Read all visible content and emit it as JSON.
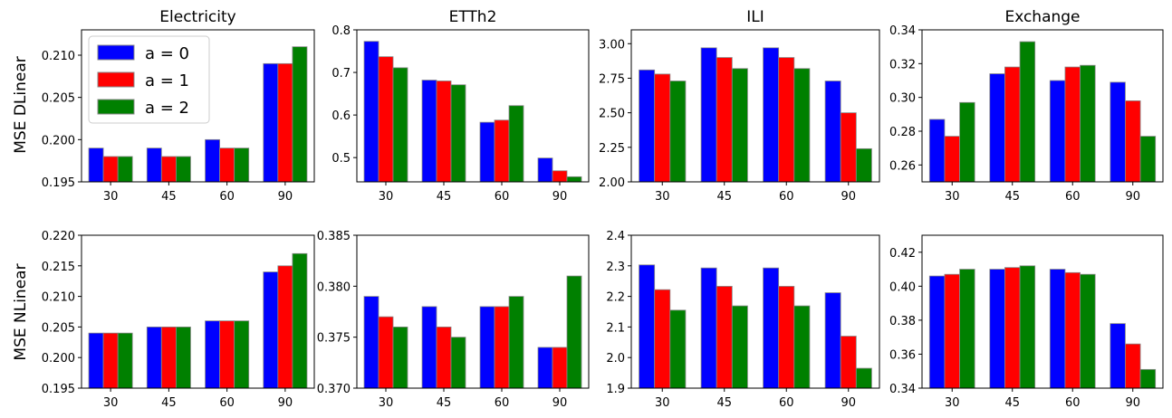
{
  "figure": {
    "row_labels": [
      "MSE DLinear",
      "MSE NLinear"
    ]
  },
  "legend": {
    "entries": [
      {
        "label": "a = 0",
        "color": "#0000ff"
      },
      {
        "label": "a = 1",
        "color": "#ff0000"
      },
      {
        "label": "a = 2",
        "color": "#008000"
      }
    ]
  },
  "chart_data": [
    {
      "type": "bar",
      "row": 0,
      "col": 0,
      "title": "Electricity",
      "categories": [
        "30",
        "45",
        "60",
        "90"
      ],
      "ylabel": "MSE DLinear",
      "ylim": [
        0.195,
        0.213
      ],
      "yticks": [
        0.195,
        0.2,
        0.205,
        0.21
      ],
      "ytick_labels": [
        "0.195",
        "0.200",
        "0.205",
        "0.210"
      ],
      "series": [
        {
          "name": "a = 0",
          "color": "#0000ff",
          "values": [
            0.199,
            0.199,
            0.2,
            0.209
          ]
        },
        {
          "name": "a = 1",
          "color": "#ff0000",
          "values": [
            0.198,
            0.198,
            0.199,
            0.209
          ]
        },
        {
          "name": "a = 2",
          "color": "#008000",
          "values": [
            0.198,
            0.198,
            0.199,
            0.211
          ]
        }
      ]
    },
    {
      "type": "bar",
      "row": 0,
      "col": 1,
      "title": "ETTh2",
      "categories": [
        "30",
        "45",
        "60",
        "90"
      ],
      "ylabel": "",
      "ylim": [
        0.443,
        0.8
      ],
      "yticks": [
        0.5,
        0.6,
        0.7,
        0.8
      ],
      "ytick_labels": [
        "0.5",
        "0.6",
        "0.7",
        "0.8"
      ],
      "series": [
        {
          "name": "a = 0",
          "color": "#0000ff",
          "values": [
            0.773,
            0.682,
            0.583,
            0.499
          ]
        },
        {
          "name": "a = 1",
          "color": "#ff0000",
          "values": [
            0.737,
            0.68,
            0.588,
            0.469
          ]
        },
        {
          "name": "a = 2",
          "color": "#008000",
          "values": [
            0.711,
            0.671,
            0.622,
            0.455
          ]
        }
      ]
    },
    {
      "type": "bar",
      "row": 0,
      "col": 2,
      "title": "ILI",
      "categories": [
        "30",
        "45",
        "60",
        "90"
      ],
      "ylabel": "",
      "ylim": [
        2.0,
        3.1
      ],
      "yticks": [
        2.0,
        2.25,
        2.5,
        2.75,
        3.0
      ],
      "ytick_labels": [
        "2.00",
        "2.25",
        "2.50",
        "2.75",
        "3.00"
      ],
      "series": [
        {
          "name": "a = 0",
          "color": "#0000ff",
          "values": [
            2.81,
            2.97,
            2.97,
            2.73
          ]
        },
        {
          "name": "a = 1",
          "color": "#ff0000",
          "values": [
            2.78,
            2.9,
            2.9,
            2.5
          ]
        },
        {
          "name": "a = 2",
          "color": "#008000",
          "values": [
            2.73,
            2.82,
            2.82,
            2.24
          ]
        }
      ]
    },
    {
      "type": "bar",
      "row": 0,
      "col": 3,
      "title": "Exchange",
      "categories": [
        "30",
        "45",
        "60",
        "90"
      ],
      "ylabel": "",
      "ylim": [
        0.25,
        0.34
      ],
      "yticks": [
        0.26,
        0.28,
        0.3,
        0.32,
        0.34
      ],
      "ytick_labels": [
        "0.26",
        "0.28",
        "0.30",
        "0.32",
        "0.34"
      ],
      "series": [
        {
          "name": "a = 0",
          "color": "#0000ff",
          "values": [
            0.287,
            0.314,
            0.31,
            0.309
          ]
        },
        {
          "name": "a = 1",
          "color": "#ff0000",
          "values": [
            0.277,
            0.318,
            0.318,
            0.298
          ]
        },
        {
          "name": "a = 2",
          "color": "#008000",
          "values": [
            0.297,
            0.333,
            0.319,
            0.277
          ]
        }
      ]
    },
    {
      "type": "bar",
      "row": 1,
      "col": 0,
      "title": "",
      "categories": [
        "30",
        "45",
        "60",
        "90"
      ],
      "ylabel": "MSE NLinear",
      "ylim": [
        0.195,
        0.22
      ],
      "yticks": [
        0.195,
        0.2,
        0.205,
        0.21,
        0.215,
        0.22
      ],
      "ytick_labels": [
        "0.195",
        "0.200",
        "0.205",
        "0.210",
        "0.215",
        "0.220"
      ],
      "series": [
        {
          "name": "a = 0",
          "color": "#0000ff",
          "values": [
            0.204,
            0.205,
            0.206,
            0.214
          ]
        },
        {
          "name": "a = 1",
          "color": "#ff0000",
          "values": [
            0.204,
            0.205,
            0.206,
            0.215
          ]
        },
        {
          "name": "a = 2",
          "color": "#008000",
          "values": [
            0.204,
            0.205,
            0.206,
            0.217
          ]
        }
      ]
    },
    {
      "type": "bar",
      "row": 1,
      "col": 1,
      "title": "",
      "categories": [
        "30",
        "45",
        "60",
        "90"
      ],
      "ylabel": "",
      "ylim": [
        0.37,
        0.385
      ],
      "yticks": [
        0.37,
        0.375,
        0.38,
        0.385
      ],
      "ytick_labels": [
        "0.370",
        "0.375",
        "0.380",
        "0.385"
      ],
      "series": [
        {
          "name": "a = 0",
          "color": "#0000ff",
          "values": [
            0.379,
            0.378,
            0.378,
            0.374
          ]
        },
        {
          "name": "a = 1",
          "color": "#ff0000",
          "values": [
            0.377,
            0.376,
            0.378,
            0.374
          ]
        },
        {
          "name": "a = 2",
          "color": "#008000",
          "values": [
            0.376,
            0.375,
            0.379,
            0.381
          ]
        }
      ]
    },
    {
      "type": "bar",
      "row": 1,
      "col": 2,
      "title": "",
      "categories": [
        "30",
        "45",
        "60",
        "90"
      ],
      "ylabel": "",
      "ylim": [
        1.9,
        2.4
      ],
      "yticks": [
        1.9,
        2.0,
        2.1,
        2.2,
        2.3,
        2.4
      ],
      "ytick_labels": [
        "1.9",
        "2.0",
        "2.1",
        "2.2",
        "2.3",
        "2.4"
      ],
      "series": [
        {
          "name": "a = 0",
          "color": "#0000ff",
          "values": [
            2.303,
            2.293,
            2.293,
            2.212
          ]
        },
        {
          "name": "a = 1",
          "color": "#ff0000",
          "values": [
            2.222,
            2.233,
            2.233,
            2.07
          ]
        },
        {
          "name": "a = 2",
          "color": "#008000",
          "values": [
            2.155,
            2.169,
            2.169,
            1.965
          ]
        }
      ]
    },
    {
      "type": "bar",
      "row": 1,
      "col": 3,
      "title": "",
      "categories": [
        "30",
        "45",
        "60",
        "90"
      ],
      "ylabel": "",
      "ylim": [
        0.34,
        0.43
      ],
      "yticks": [
        0.34,
        0.36,
        0.38,
        0.4,
        0.42
      ],
      "ytick_labels": [
        "0.34",
        "0.36",
        "0.38",
        "0.40",
        "0.42"
      ],
      "series": [
        {
          "name": "a = 0",
          "color": "#0000ff",
          "values": [
            0.406,
            0.41,
            0.41,
            0.378
          ]
        },
        {
          "name": "a = 1",
          "color": "#ff0000",
          "values": [
            0.407,
            0.411,
            0.408,
            0.366
          ]
        },
        {
          "name": "a = 2",
          "color": "#008000",
          "values": [
            0.41,
            0.412,
            0.407,
            0.351
          ]
        }
      ]
    }
  ]
}
